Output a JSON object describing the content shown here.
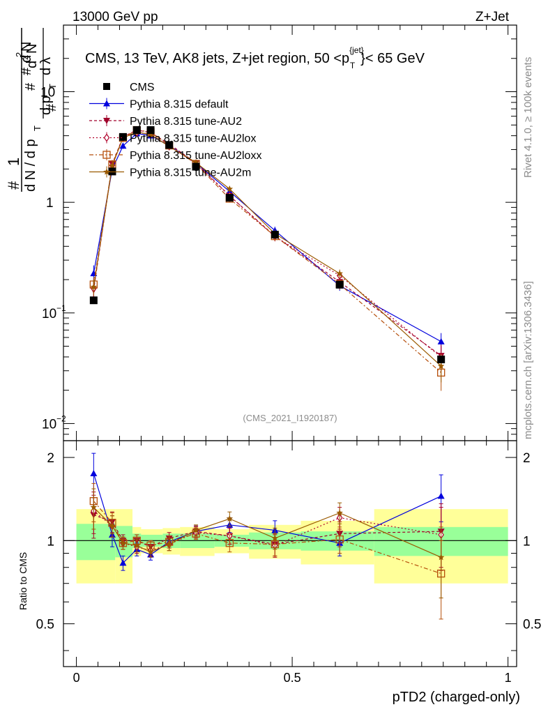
{
  "header": {
    "left": "13000 GeV pp",
    "right": "Z+Jet"
  },
  "side_labels": {
    "rivet": "Rivet 4.1.0, ≥ 100k events",
    "mcplots": "mcplots.cern.ch [arXiv:1306.3436]"
  },
  "chart_data": {
    "type": "line",
    "title": "CMS, 13 TeV, AK8 jets, Z+jet region, 50 <p_T^{jet}< 65 GeV",
    "title_parts": {
      "main": "CMS, 13 TeV, AK8 jets, Z+jet region, 50 <p",
      "sup": "{jet}",
      "sub": "T",
      "end": "}< 65 GeV"
    },
    "analysis_tag": "(CMS_2021_I1920187)",
    "xlabel": "pTD2 (charged-only)",
    "ylabel": "1/dN/dp_T  d²N/dp_T dλ",
    "ratio_ylabel": "Ratio to CMS",
    "xlim": [
      -0.03,
      1.02
    ],
    "ylim_main": [
      0.007,
      40
    ],
    "ylim_ratio": [
      0.35,
      2.3
    ],
    "x_ticks": [
      "0",
      "0.5",
      "1"
    ],
    "main_ticks": [
      {
        "value": 0.01,
        "base": "10",
        "exp": "−2"
      },
      {
        "value": 0.1,
        "base": "10",
        "exp": "−1"
      },
      {
        "value": 1,
        "base": "1",
        "exp": ""
      },
      {
        "value": 10,
        "base": "10",
        "exp": ""
      }
    ],
    "ratio_ticks": [
      "0.5",
      "1",
      "2"
    ],
    "bins": [
      [
        0.0,
        0.09
      ],
      [
        0.09,
        0.13
      ],
      [
        0.13,
        0.15
      ],
      [
        0.15,
        0.2
      ],
      [
        0.2,
        0.24
      ],
      [
        0.24,
        0.32
      ],
      [
        0.32,
        0.4
      ],
      [
        0.4,
        0.52
      ],
      [
        0.52,
        0.69
      ],
      [
        0.69,
        1.0
      ]
    ],
    "x": [
      0.04,
      0.083,
      0.108,
      0.14,
      0.172,
      0.215,
      0.277,
      0.355,
      0.46,
      0.61,
      0.845
    ],
    "data": {
      "name": "CMS",
      "values": [
        0.13,
        1.9,
        3.9,
        4.5,
        4.5,
        3.3,
        2.1,
        1.1,
        0.51,
        0.18,
        0.038
      ],
      "band_inner": [
        0.15,
        0.13,
        0.06,
        0.06,
        0.05,
        0.06,
        0.06,
        0.05,
        0.07,
        0.08,
        0.12
      ],
      "band_outer": [
        0.3,
        0.3,
        0.12,
        0.12,
        0.1,
        0.11,
        0.12,
        0.1,
        0.14,
        0.18,
        0.3
      ]
    },
    "series": [
      {
        "name": "Pythia 8.315 default",
        "color": "#0000dd",
        "marker": "triangle-up",
        "dash": "",
        "ratio": [
          1.75,
          1.05,
          0.83,
          0.93,
          0.89,
          0.99,
          1.08,
          1.14,
          1.09,
          0.98,
          1.45
        ],
        "err": [
          0.32,
          0.1,
          0.05,
          0.05,
          0.04,
          0.05,
          0.05,
          0.07,
          0.09,
          0.1,
          0.28
        ]
      },
      {
        "name": "Pythia 8.315 tune-AU2",
        "color": "#a0002a",
        "marker": "triangle-down",
        "dash": "4,3",
        "ratio": [
          1.24,
          1.17,
          1.0,
          1.0,
          0.95,
          1.02,
          1.08,
          1.04,
          0.97,
          1.06,
          1.08
        ],
        "err": [
          0.22,
          0.1,
          0.05,
          0.05,
          0.04,
          0.05,
          0.05,
          0.07,
          0.09,
          0.11,
          0.28
        ]
      },
      {
        "name": "Pythia 8.315 tune-AU2lox",
        "color": "#b0002a",
        "marker": "diamond-open",
        "dash": "2,3",
        "ratio": [
          1.28,
          1.13,
          0.98,
          0.95,
          0.92,
          0.97,
          1.07,
          1.04,
          0.96,
          1.21,
          1.05
        ],
        "err": [
          0.22,
          0.1,
          0.05,
          0.05,
          0.04,
          0.05,
          0.05,
          0.07,
          0.09,
          0.11,
          0.27
        ]
      },
      {
        "name": "Pythia 8.315 tune-AU2loxx",
        "color": "#b54e0a",
        "marker": "square-open",
        "dash": "6,3,2,3",
        "ratio": [
          1.39,
          1.16,
          0.98,
          1.0,
          0.96,
          0.99,
          1.06,
          0.98,
          0.97,
          1.01,
          0.76
        ],
        "err": [
          0.22,
          0.1,
          0.05,
          0.05,
          0.04,
          0.05,
          0.05,
          0.07,
          0.09,
          0.11,
          0.24
        ]
      },
      {
        "name": "Pythia 8.315 tune-AU2m",
        "color": "#9a5a00",
        "marker": "star",
        "dash": "",
        "ratio": [
          1.32,
          1.13,
          0.98,
          0.96,
          0.91,
          0.97,
          1.09,
          1.2,
          1.02,
          1.26,
          0.87
        ],
        "err": [
          0.22,
          0.1,
          0.05,
          0.05,
          0.04,
          0.05,
          0.05,
          0.07,
          0.09,
          0.11,
          0.25
        ]
      }
    ]
  }
}
